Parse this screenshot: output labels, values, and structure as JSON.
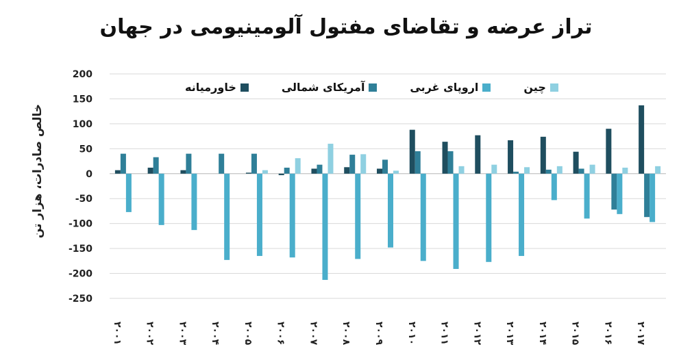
{
  "chart_data": {
    "type": "bar",
    "title": "تراز عرضه و تقاضای مفتول آلومینیومی در جهان",
    "ylabel": "خالص صادرات، هزار تن",
    "xlabel": "",
    "ylim": [
      -250,
      200
    ],
    "yticks": [
      200,
      150,
      100,
      50,
      0,
      -50,
      -100,
      -150,
      -200,
      -250
    ],
    "ytick_labels": [
      "200",
      "150",
      "100",
      "50",
      "0",
      "-50",
      "-100",
      "-150",
      "-200",
      "-250"
    ],
    "grid": true,
    "legend_position": "top",
    "categories": [
      "2001",
      "2002",
      "2003",
      "2004",
      "2005",
      "2006",
      "2007",
      "2008",
      "2009",
      "2010",
      "2011",
      "2012",
      "2013",
      "2014",
      "2015",
      "2016",
      "2017"
    ],
    "category_labels": [
      "۲۰۰۱",
      "۲۰۰۲",
      "۲۰۰۳",
      "۲۰۰۴",
      "۲۰۰۵",
      "۲۰۰۶",
      "۲۰۰۷",
      "۲۰۰۸",
      "۲۰۰۹",
      "۲۰۱۰",
      "۲۰۱۱",
      "۲۰۱۲",
      "۲۰۱۳",
      "۲۰۱۴",
      "۲۰۱۵",
      "۲۰۱۶",
      "۲۰۱۷"
    ],
    "series": [
      {
        "name": "خاورمیانه",
        "color": "#1f4e5f",
        "values": [
          7,
          12,
          7,
          0,
          2,
          -3,
          10,
          13,
          10,
          88,
          64,
          77,
          67,
          74,
          44,
          90,
          137
        ]
      },
      {
        "name": "آمریکای شمالی",
        "color": "#2f7f98",
        "values": [
          40,
          33,
          40,
          40,
          40,
          12,
          18,
          38,
          28,
          45,
          45,
          0,
          4,
          8,
          10,
          -72,
          -87
        ]
      },
      {
        "name": "اروپای غربی",
        "color": "#4aaecb",
        "values": [
          -77,
          -103,
          -113,
          -173,
          -165,
          -168,
          -213,
          -171,
          -148,
          -175,
          -191,
          -177,
          -165,
          -53,
          -90,
          -81,
          -97
        ]
      },
      {
        "name": "چین",
        "color": "#8fd0e1",
        "values": [
          0,
          0,
          0,
          0,
          7,
          31,
          60,
          39,
          6,
          0,
          15,
          18,
          13,
          15,
          18,
          12,
          15
        ]
      }
    ]
  }
}
